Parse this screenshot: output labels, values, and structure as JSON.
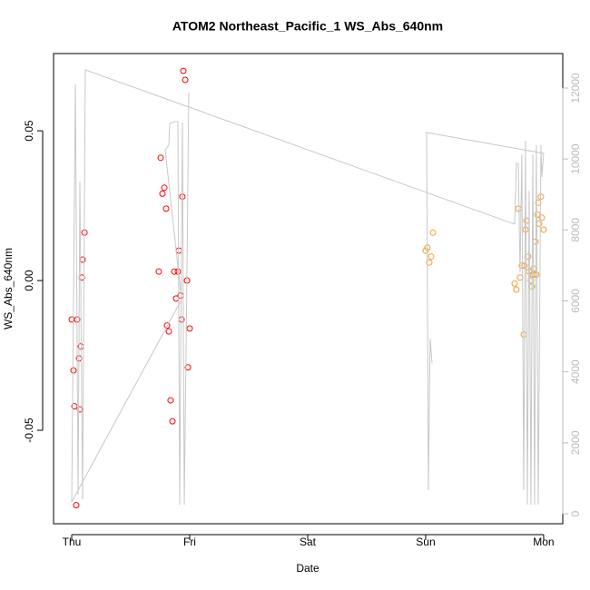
{
  "chart_data": {
    "type": "scatter",
    "title": "ATOM2 Northeast_Pacific_1 WS_Abs_640nm",
    "xlabel": "Date",
    "ylabel": "WS_Abs_640nm",
    "xlim": [
      -0.154,
      4.162
    ],
    "xticks": [
      {
        "value": 0,
        "label": "Thu"
      },
      {
        "value": 1,
        "label": "Fri"
      },
      {
        "value": 2,
        "label": "Sat"
      },
      {
        "value": 3,
        "label": "Sun"
      },
      {
        "value": 4,
        "label": "Mon"
      }
    ],
    "ylim": [
      -0.0812,
      0.0758
    ],
    "yticks": [
      -0.05,
      {
        "value": 0,
        "label": "0.00"
      },
      0.05
    ],
    "y2lim": [
      -281,
      12972
    ],
    "y2ticks": [
      0,
      2000,
      4000,
      6000,
      8000,
      10000,
      12000
    ],
    "series": [
      {
        "color": "#ff0000",
        "x": [
          0,
          0.015,
          0.023,
          0.038,
          0.046,
          0.062,
          0.069,
          0.077,
          0.085,
          0.092,
          0.108,
          0.738,
          0.754,
          0.769,
          0.785,
          0.8,
          0.808,
          0.823,
          0.838,
          0.854,
          0.869,
          0.885,
          0.9,
          0.908,
          0.923,
          0.931,
          0.938,
          0.946,
          0.962,
          0.977,
          0.985,
          1.0
        ],
        "values": [
          -0.013,
          -0.03,
          -0.042,
          -0.075,
          -0.013,
          -0.026,
          -0.043,
          -0.022,
          0.001,
          0.007,
          0.016,
          0.003,
          0.041,
          0.029,
          0.031,
          0.024,
          -0.015,
          -0.017,
          -0.04,
          -0.047,
          0.003,
          -0.006,
          0.003,
          0.01,
          -0.005,
          -0.013,
          0.028,
          0.07,
          0.067,
          0,
          -0.029,
          -0.016
        ]
      },
      {
        "color": "#f0a030",
        "x": [
          3.0,
          3.015,
          3.031,
          3.046,
          3.062,
          3.754,
          3.769,
          3.785,
          3.8,
          3.815,
          3.831,
          3.838,
          3.846,
          3.854,
          3.869,
          3.877,
          3.892,
          3.9,
          3.908,
          3.915,
          3.923,
          3.931,
          3.938,
          3.946,
          3.954,
          3.962,
          3.977,
          3.985,
          4.0
        ],
        "values": [
          0.01,
          0.011,
          0.006,
          0.008,
          0.016,
          -0.001,
          -0.003,
          0.024,
          0.001,
          0.005,
          -0.018,
          0.005,
          0.017,
          0.02,
          0.008,
          0.003,
          0,
          -0.002,
          0.002,
          0.004,
          0.002,
          0.013,
          0.002,
          0.022,
          0.026,
          0.019,
          0.028,
          0.021,
          0.017
        ]
      },
      {
        "color": "#c8c8c8",
        "axis": "y2",
        "kind": "line",
        "x": [
          3.054,
          3.038,
          3.023,
          3.008,
          4.0,
          3.985,
          3.977,
          3.954,
          3.938,
          3.923,
          3.908,
          3.892,
          3.877,
          3.862,
          3.846,
          3.831,
          3.815,
          3.8,
          3.785,
          3.769,
          3.754,
          0.115,
          0.092,
          0.069,
          0.054,
          0.031,
          0,
          0.931,
          0.792,
          0.823,
          0.831,
          0.877,
          0.9,
          0.915,
          0.938,
          0.954,
          0.977,
          0.992
        ],
        "values": [
          4248,
          4939,
          665,
          10747,
          10159,
          9493,
          10389,
          256,
          10389,
          256,
          10133,
          256,
          9109,
          256,
          10517,
          665,
          10133,
          6807,
          9877,
          9877,
          8163,
          12513,
          409,
          9365,
          537,
          12103,
          333,
          6039,
          10261,
          10389,
          11003,
          11054,
          11054,
          256,
          11029,
          256,
          6807,
          11873
        ]
      }
    ]
  }
}
